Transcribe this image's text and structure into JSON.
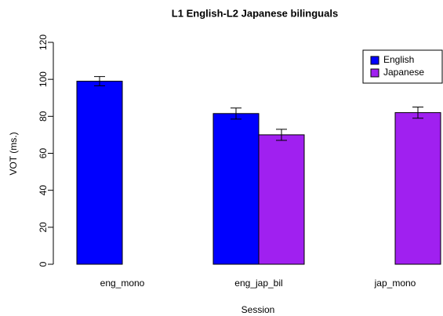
{
  "chart_data": {
    "type": "bar",
    "title": "L1 English-L2 Japanese bilinguals",
    "x_label": "Session",
    "y_label": "VOT (ms.)",
    "categories": [
      "eng_mono",
      "eng_jap_bil",
      "jap_mono"
    ],
    "series": [
      {
        "name": "English",
        "color": "#0000FF",
        "values": [
          99,
          81.5,
          null
        ],
        "errors": [
          2.5,
          3,
          null
        ]
      },
      {
        "name": "Japanese",
        "color": "#A020F0",
        "values": [
          null,
          70,
          82
        ],
        "errors": [
          null,
          3,
          3
        ]
      }
    ],
    "ylim": [
      0,
      120
    ],
    "yticks": [
      0,
      20,
      40,
      60,
      80,
      100,
      120
    ],
    "legend": "top-right"
  }
}
